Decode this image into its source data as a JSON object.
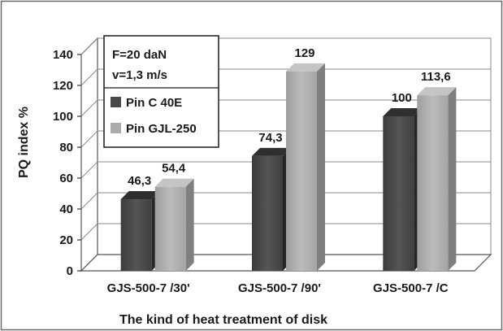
{
  "chart_data": {
    "type": "bar",
    "title": "",
    "xlabel": "The kind of heat treatment of disk",
    "ylabel": "PQ index %",
    "categories": [
      "GJS-500-7 /30'",
      "GJS-500-7 /90'",
      "GJS-500-7 /C"
    ],
    "series": [
      {
        "name": "Pin C 40E",
        "values": [
          46.3,
          74.3,
          100
        ],
        "labels": [
          "46,3",
          "74,3",
          "100"
        ],
        "color": "#4a4a4a"
      },
      {
        "name": "Pin GJL-250",
        "values": [
          54.4,
          129,
          113.6
        ],
        "labels": [
          "54,4",
          "129",
          "113,6"
        ],
        "color": "#ababab"
      }
    ],
    "ylim": [
      0,
      140
    ],
    "yticks": [
      0,
      20,
      40,
      60,
      80,
      100,
      120,
      140
    ],
    "grid": true,
    "legend_placement": "top-left",
    "annotation_lines": [
      "F=20 daN",
      "v=1,3 m/s"
    ]
  }
}
